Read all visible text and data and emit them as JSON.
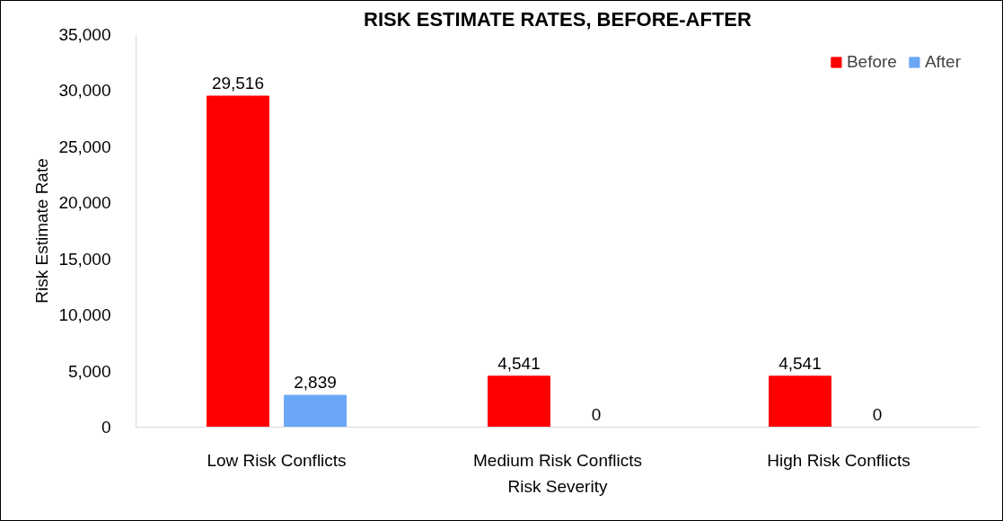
{
  "chart_data": {
    "type": "bar",
    "title": "RISK ESTIMATE RATES, BEFORE-AFTER",
    "xlabel": "Risk Severity",
    "ylabel": "Risk Estimate Rate",
    "categories": [
      "Low Risk Conflicts",
      "Medium Risk Conflicts",
      "High Risk Conflicts"
    ],
    "series": [
      {
        "name": "Before",
        "color": "#ff0000",
        "values": [
          29516,
          4541,
          4541
        ],
        "value_labels": [
          "29,516",
          "4,541",
          "4,541"
        ]
      },
      {
        "name": "After",
        "color": "#6aa8f7",
        "values": [
          2839,
          0,
          0
        ],
        "value_labels": [
          "2,839",
          "0",
          "0"
        ]
      }
    ],
    "ylim": [
      0,
      35000
    ],
    "yticks": [
      0,
      {
        "value": 5000,
        "label": "5,000"
      },
      {
        "value": 10000,
        "label": "10,000"
      },
      {
        "value": 15000,
        "label": "15,000"
      },
      {
        "value": 20000,
        "label": "20,000"
      },
      {
        "value": 25000,
        "label": "25,000"
      },
      {
        "value": 30000,
        "label": "30,000"
      },
      {
        "value": 35000,
        "label": "35,000"
      }
    ],
    "legend": "top right"
  }
}
